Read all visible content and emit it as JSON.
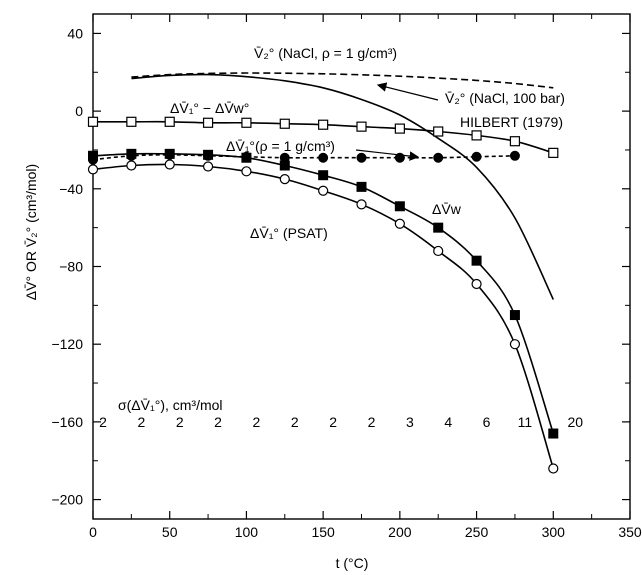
{
  "chart_data": {
    "type": "line",
    "xlabel": "t (°C)",
    "ylabel": "ΔV̄° OR V̄₂° (cm³/mol)",
    "xlim": [
      0,
      350
    ],
    "ylim": [
      -210,
      50
    ],
    "x_ticks": [
      "0",
      "50",
      "100",
      "150",
      "200",
      "250",
      "300",
      "350"
    ],
    "y_ticks": [
      "40",
      "0",
      "−40",
      "−80",
      "−120",
      "−160",
      "−200"
    ],
    "grid": false,
    "series": [
      {
        "id": "v2-nacl-rho",
        "label": "V̄₂° (NaCl, ρ = 1 g/cm³)",
        "style": "dashed",
        "marker": "none",
        "x": [
          25,
          50,
          75,
          100,
          125,
          150,
          175,
          200,
          225,
          250,
          275,
          300
        ],
        "y": [
          17.5,
          18.8,
          19.4,
          19.6,
          19.5,
          19.2,
          18.7,
          18.0,
          17.0,
          15.8,
          14.2,
          12.0
        ]
      },
      {
        "id": "v2-nacl-100bar",
        "label": "V̄₂° (NaCl, 100 bar)",
        "style": "solid",
        "marker": "none",
        "x": [
          25,
          50,
          75,
          100,
          125,
          150,
          175,
          200,
          225,
          250,
          275,
          300
        ],
        "y": [
          16.8,
          18.4,
          18.8,
          17.7,
          15.6,
          12.0,
          6.0,
          -2.0,
          -14.0,
          -29.0,
          -55.0,
          -97.0
        ]
      },
      {
        "id": "dv1-minus-dvw",
        "label": "ΔV̄₁° − ΔV̄w°",
        "style": "solid",
        "marker": "open-square",
        "x": [
          0,
          25,
          50,
          75,
          100,
          125,
          150,
          175,
          200,
          225,
          250,
          275,
          300
        ],
        "y": [
          -5.5,
          -5.5,
          -5.5,
          -6.0,
          -6.0,
          -6.5,
          -7.0,
          -8.0,
          -9.0,
          -10.5,
          -12.5,
          -15.5,
          -21.5
        ]
      },
      {
        "id": "dv1-rho",
        "label": "ΔV̄₁°(ρ = 1 g/cm³)",
        "style": "dashed",
        "marker": "filled-circle",
        "x": [
          0,
          25,
          50,
          75,
          100,
          125,
          150,
          175,
          200,
          225,
          250,
          275
        ],
        "y": [
          -25.0,
          -23.0,
          -22.5,
          -23.0,
          -23.5,
          -24.0,
          -24.0,
          -24.0,
          -24.0,
          -24.0,
          -23.5,
          -23.0
        ]
      },
      {
        "id": "dvw",
        "label": "ΔV̄w",
        "style": "solid",
        "marker": "filled-square",
        "x": [
          0,
          25,
          50,
          75,
          100,
          125,
          150,
          175,
          200,
          225,
          250,
          275,
          300
        ],
        "y": [
          -23.0,
          -22.0,
          -22.0,
          -22.5,
          -24.0,
          -28.0,
          -33.0,
          -39.0,
          -49.0,
          -60.0,
          -77.0,
          -105.0,
          -166.0
        ]
      },
      {
        "id": "dv1-psat",
        "label": "ΔV̄₁° (PSAT)",
        "style": "solid",
        "marker": "open-circle",
        "x": [
          0,
          25,
          50,
          75,
          100,
          125,
          150,
          175,
          200,
          225,
          250,
          275,
          300
        ],
        "y": [
          -30.0,
          -28.0,
          -27.5,
          -28.5,
          -31.0,
          -35.0,
          -41.0,
          -48.0,
          -58.0,
          -72.0,
          -89.0,
          -120.0,
          -184.0
        ]
      }
    ],
    "annotations": {
      "hilbert": "HILBERT (1979)",
      "sigma_label": "σ(ΔV̄₁°), cm³/mol",
      "sigma_values": [
        {
          "x": 0,
          "label": "2"
        },
        {
          "x": 25,
          "label": "2"
        },
        {
          "x": 50,
          "label": "2"
        },
        {
          "x": 75,
          "label": "2"
        },
        {
          "x": 100,
          "label": "2"
        },
        {
          "x": 125,
          "label": "2"
        },
        {
          "x": 150,
          "label": "2"
        },
        {
          "x": 175,
          "label": "2"
        },
        {
          "x": 200,
          "label": "3"
        },
        {
          "x": 225,
          "label": "4"
        },
        {
          "x": 250,
          "label": "6"
        },
        {
          "x": 275,
          "label": "11"
        },
        {
          "x": 300,
          "label": "20"
        }
      ]
    }
  }
}
